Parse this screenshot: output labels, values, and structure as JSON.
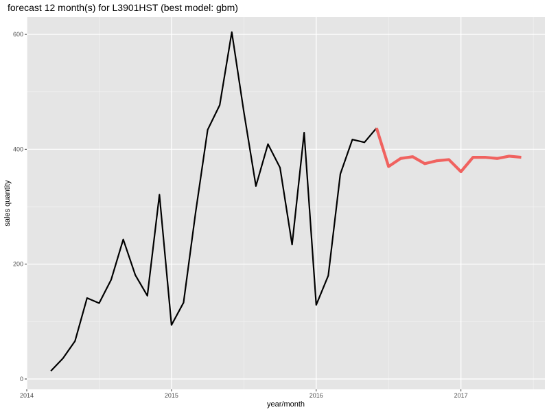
{
  "chart_data": {
    "type": "line",
    "title": "forecast 12 month(s) for L3901HST (best model: gbm)",
    "xlabel": "year/month",
    "ylabel": "sales quantity",
    "x_range": [
      2014.0,
      2017.58
    ],
    "y_range": [
      -18,
      630
    ],
    "x_ticks": [
      {
        "value": 2014,
        "label": "2014"
      },
      {
        "value": 2015,
        "label": "2015"
      },
      {
        "value": 2016,
        "label": "2016"
      },
      {
        "value": 2017,
        "label": "2017"
      }
    ],
    "y_ticks": [
      {
        "value": 0,
        "label": "0"
      },
      {
        "value": 200,
        "label": "200"
      },
      {
        "value": 400,
        "label": "400"
      },
      {
        "value": 600,
        "label": "600"
      }
    ],
    "grid": true,
    "series": [
      {
        "color": "#000000",
        "points": [
          [
            "2014-03",
            14
          ],
          [
            "2014-04",
            36
          ],
          [
            "2014-05",
            66
          ],
          [
            "2014-06",
            141
          ],
          [
            "2014-07",
            132
          ],
          [
            "2014-08",
            173
          ],
          [
            "2014-09",
            243
          ],
          [
            "2014-10",
            181
          ],
          [
            "2014-11",
            145
          ],
          [
            "2014-12",
            321
          ],
          [
            "2015-01",
            94
          ],
          [
            "2015-02",
            133
          ],
          [
            "2015-03",
            290
          ],
          [
            "2015-04",
            434
          ],
          [
            "2015-05",
            477
          ],
          [
            "2015-06",
            604
          ],
          [
            "2015-07",
            465
          ],
          [
            "2015-08",
            336
          ],
          [
            "2015-09",
            409
          ],
          [
            "2015-10",
            368
          ],
          [
            "2015-11",
            234
          ],
          [
            "2015-12",
            429
          ],
          [
            "2016-01",
            129
          ],
          [
            "2016-02",
            180
          ],
          [
            "2016-03",
            357
          ],
          [
            "2016-04",
            417
          ],
          [
            "2016-05",
            412
          ],
          [
            "2016-06",
            437
          ]
        ]
      },
      {
        "color": "#f0625f",
        "points": [
          [
            "2016-06",
            437
          ],
          [
            "2016-07",
            370
          ],
          [
            "2016-08",
            384
          ],
          [
            "2016-09",
            387
          ],
          [
            "2016-10",
            375
          ],
          [
            "2016-11",
            380
          ],
          [
            "2016-12",
            382
          ],
          [
            "2017-01",
            361
          ],
          [
            "2017-02",
            386
          ],
          [
            "2017-03",
            386
          ],
          [
            "2017-04",
            384
          ],
          [
            "2017-05",
            388
          ],
          [
            "2017-06",
            386
          ]
        ]
      }
    ]
  }
}
